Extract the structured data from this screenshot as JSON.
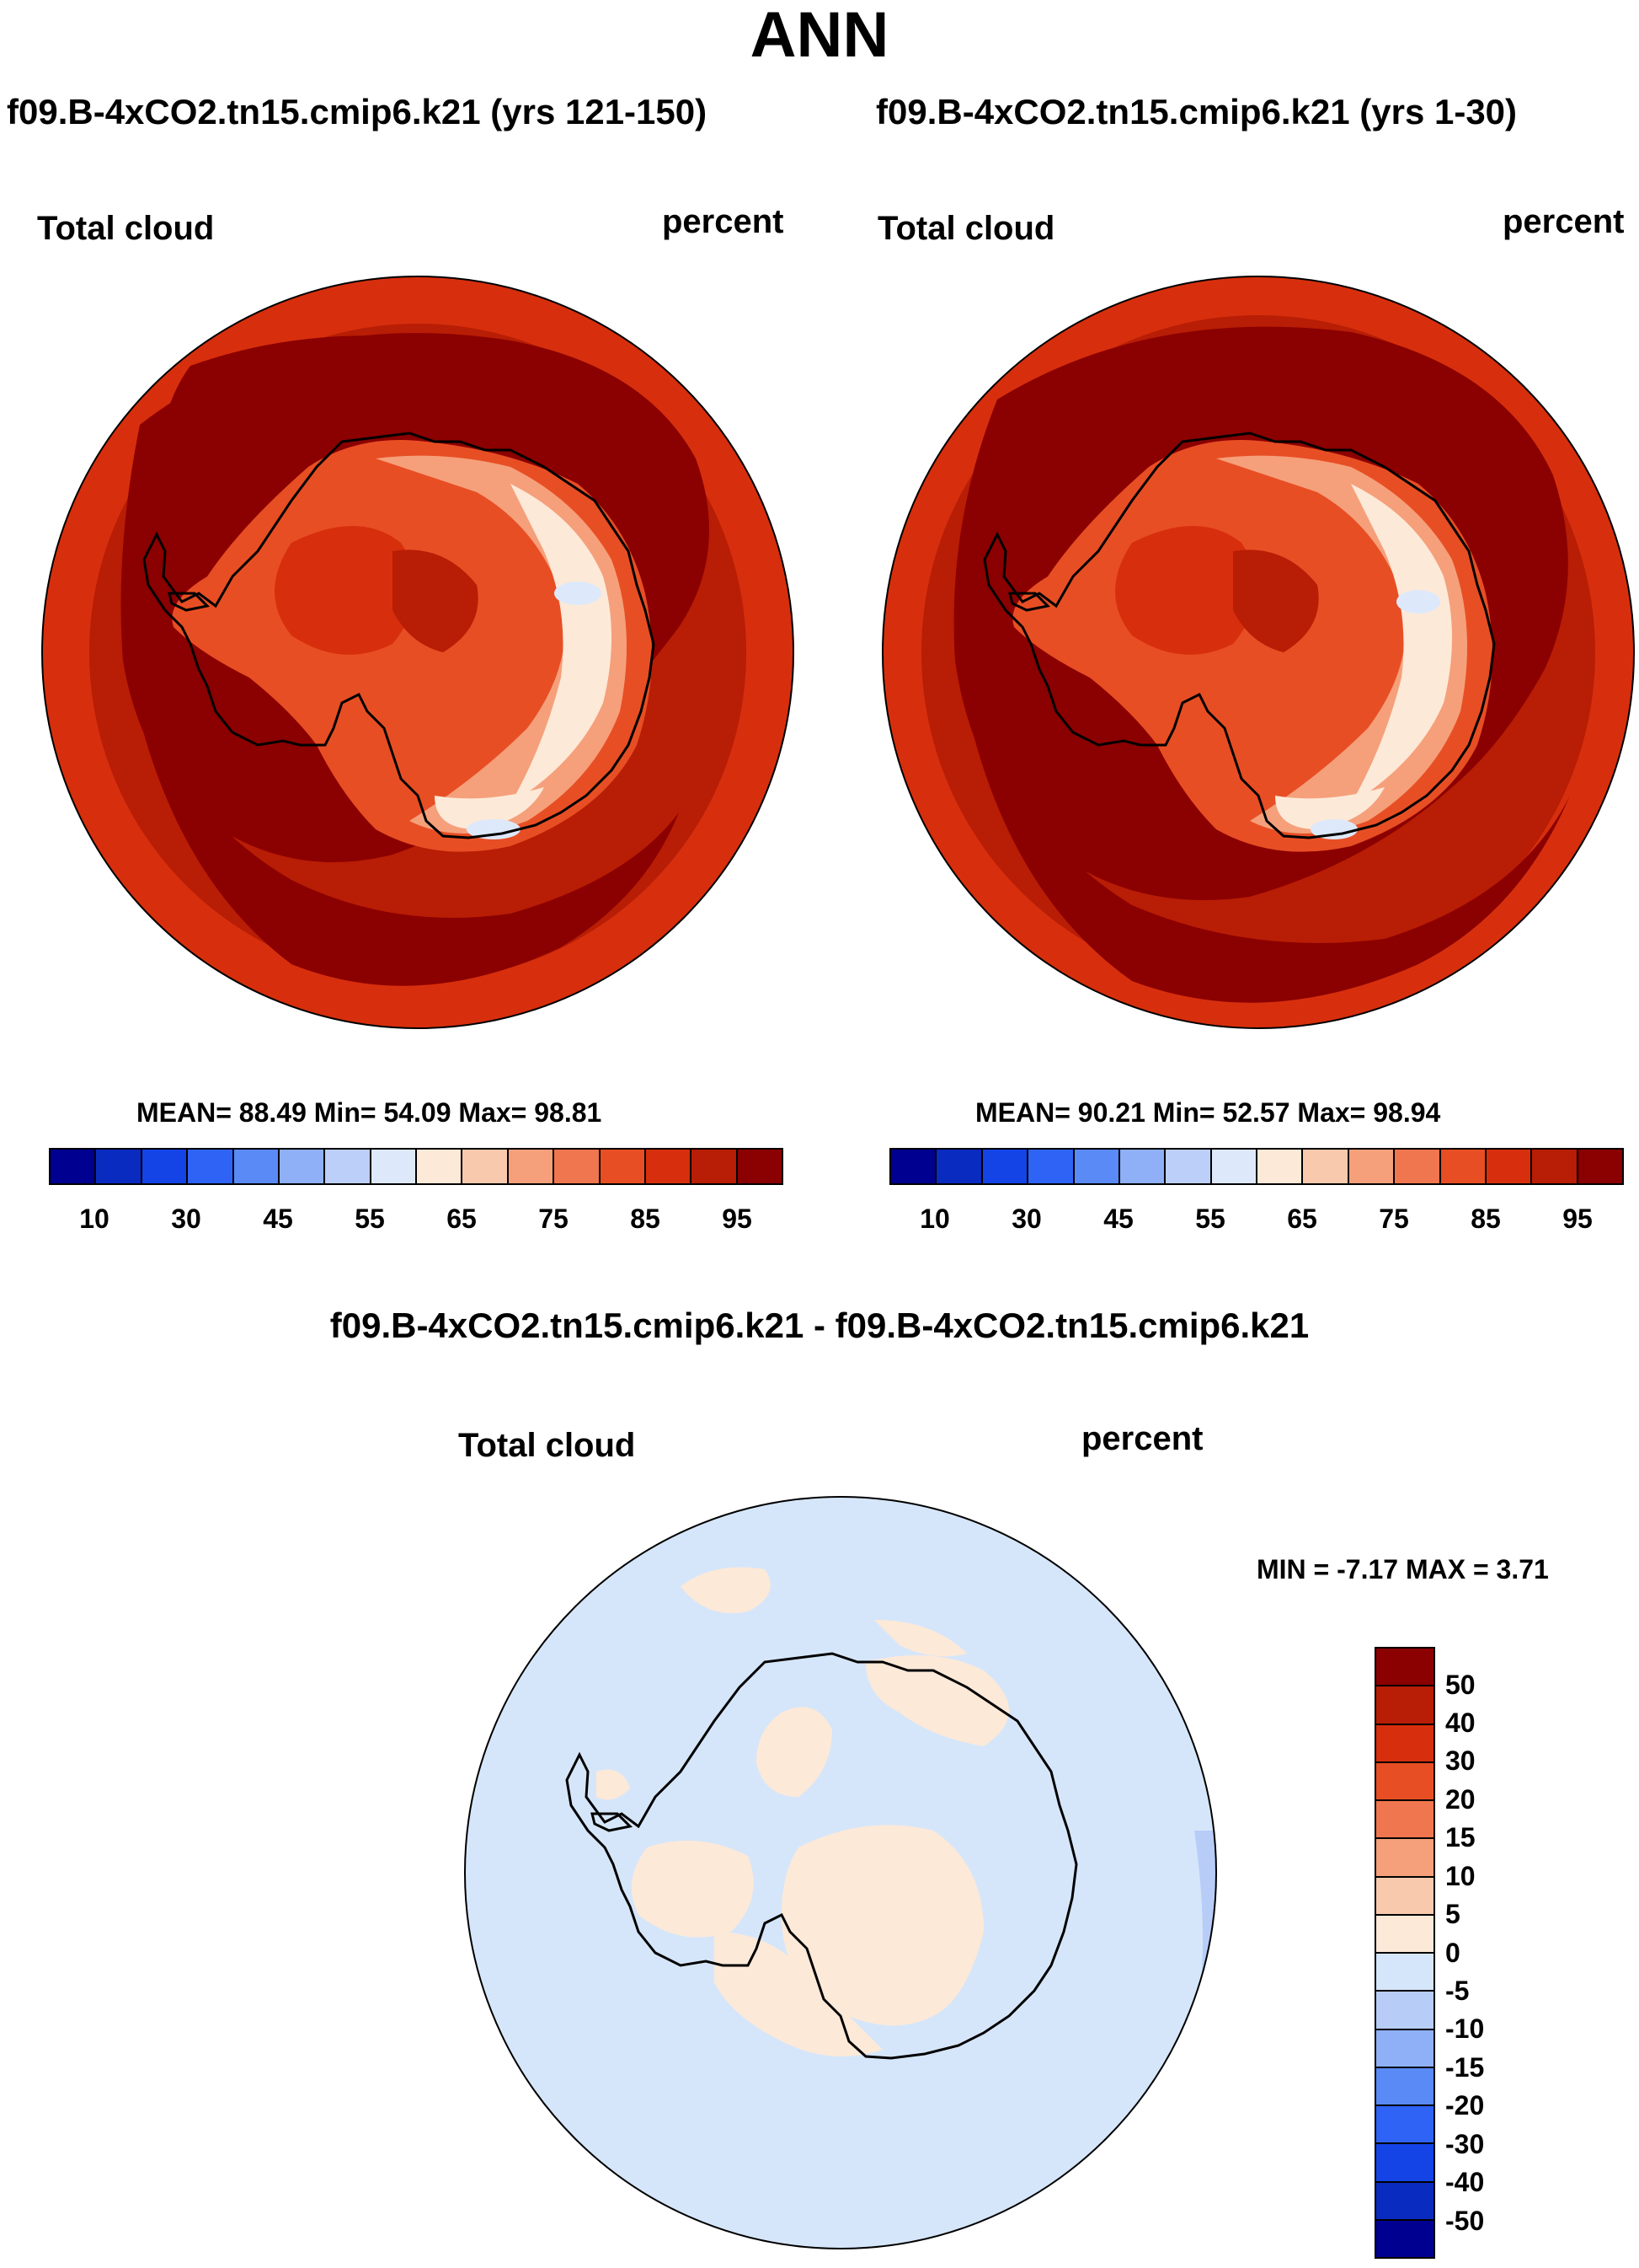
{
  "title": "ANN",
  "panels": [
    {
      "name": "panel-1",
      "case_title": "f09.B-4xCO2.tn15.cmip6.k21 (yrs 121-150)",
      "left_label": "Total cloud",
      "right_label": "percent",
      "stats": "MEAN=  88.49  Min=  54.09  Max=  98.81"
    },
    {
      "name": "panel-2",
      "case_title": "f09.B-4xCO2.tn15.cmip6.k21 (yrs 1-30)",
      "left_label": "Total cloud",
      "right_label": "percent",
      "stats": "MEAN=  90.21  Min=  52.57  Max=  98.94"
    }
  ],
  "diff_panel": {
    "case_title": "f09.B-4xCO2.tn15.cmip6.k21 - f09.B-4xCO2.tn15.cmip6.k21",
    "left_label": "Total cloud",
    "right_label": "percent",
    "stats": "MIN =  -7.17 MAX =   3.71"
  },
  "colorbar_abs": {
    "colors": [
      "#000090",
      "#0a2bc0",
      "#1444e6",
      "#2f63f5",
      "#5a8af6",
      "#8fb0f6",
      "#bccff8",
      "#dde9fb",
      "#fde9d8",
      "#f9c9ad",
      "#f5a07b",
      "#f0764f",
      "#e84e24",
      "#d72f0d",
      "#b81d05",
      "#8b0000"
    ],
    "tick_labels": [
      "10",
      "30",
      "45",
      "55",
      "65",
      "75",
      "85",
      "95"
    ]
  },
  "colorbar_diff": {
    "colors": [
      "#8b0000",
      "#b81d05",
      "#d72f0d",
      "#e84e24",
      "#f0764f",
      "#f5a07b",
      "#f9c9ad",
      "#fde9d8",
      "#d6e6fa",
      "#b7cdf7",
      "#8fb0f6",
      "#5a8af6",
      "#2f63f5",
      "#1444e6",
      "#0a2bc0",
      "#000090"
    ],
    "tick_labels": [
      "50",
      "40",
      "30",
      "20",
      "15",
      "10",
      "5",
      "0",
      "-5",
      "-10",
      "-15",
      "-20",
      "-30",
      "-40",
      "-50"
    ]
  }
}
